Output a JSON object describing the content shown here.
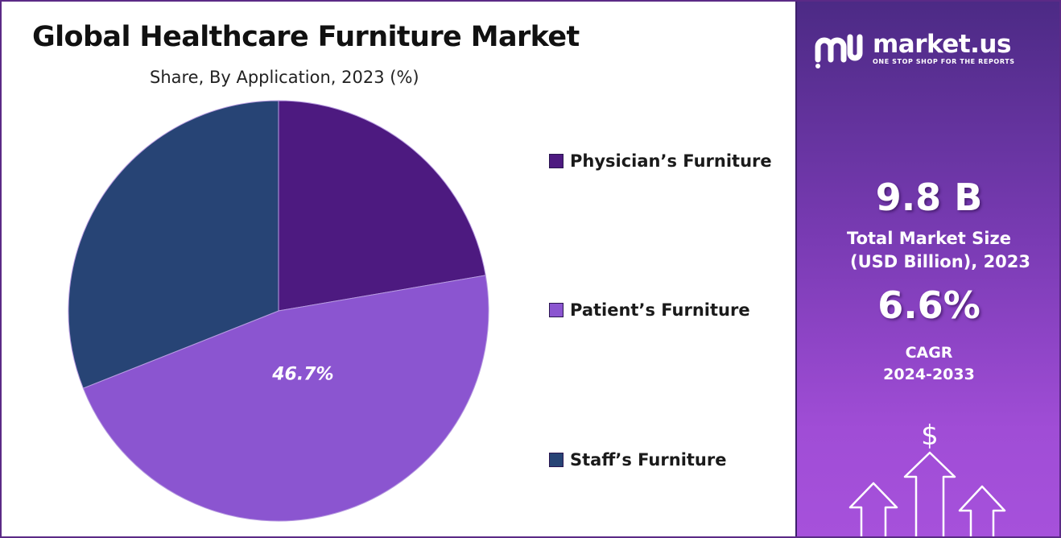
{
  "header": {
    "title": "Global Healthcare Furniture Market",
    "subtitle": "Share, By Application, 2023 (%)"
  },
  "chart_data": {
    "type": "pie",
    "start_angle_deg": 0,
    "direction": "clockwise",
    "slices": [
      {
        "label": "Physician’s Furniture",
        "value": 22.3,
        "color": "#4d1a80"
      },
      {
        "label": "Patient’s Furniture",
        "value": 46.7,
        "color": "#8b55d0",
        "data_label": "46.7%"
      },
      {
        "label": "Staff’s Furniture",
        "value": 31.0,
        "color": "#274475"
      }
    ],
    "legend_position": "right"
  },
  "legend": {
    "items": [
      {
        "label": "Physician’s Furniture",
        "color": "#4d1a80"
      },
      {
        "label": "Patient’s Furniture",
        "color": "#8b55d0"
      },
      {
        "label": "Staff’s Furniture",
        "color": "#274475"
      }
    ]
  },
  "side_panel": {
    "brand": "market.us",
    "tagline": "ONE STOP SHOP FOR THE REPORTS",
    "market_size_value": "9.8 B",
    "market_size_label_line1": "Total Market Size",
    "market_size_label_line2": "(USD Billion), 2023",
    "cagr_value": "6.6%",
    "cagr_label_line1": "CAGR",
    "cagr_label_line2": "2024-2033",
    "dollar_symbol": "$"
  },
  "colors": {
    "panel_top": "#4c2a85",
    "panel_bottom": "#a651db",
    "frame": "#5b2a86"
  }
}
